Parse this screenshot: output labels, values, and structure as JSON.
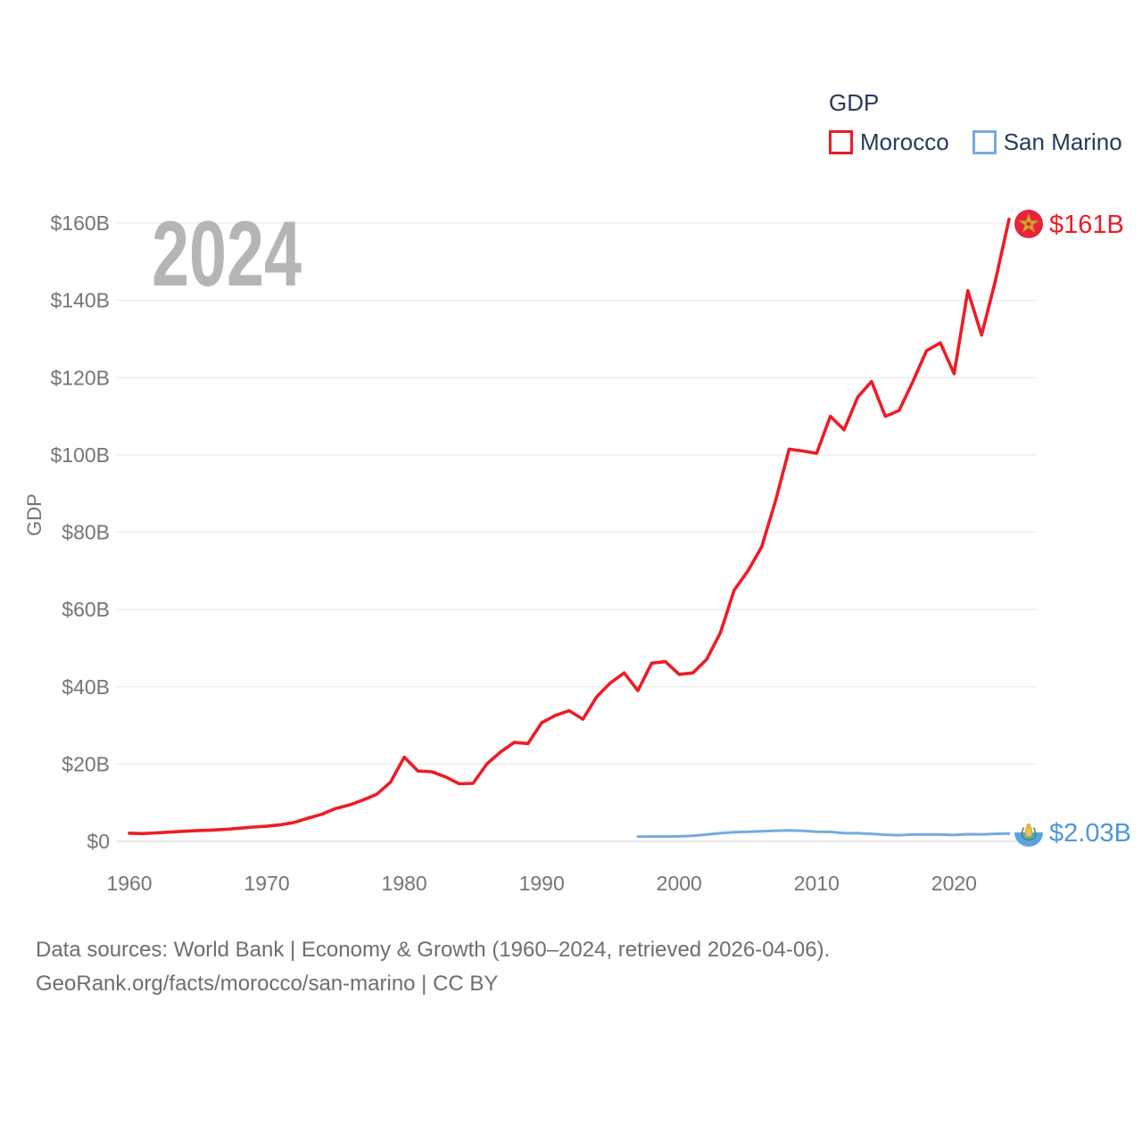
{
  "watermark": "2024",
  "legend": {
    "title": "GDP",
    "items": [
      {
        "label": "Morocco",
        "color": "#ee1c25"
      },
      {
        "label": "San Marino",
        "color": "#74abdf"
      }
    ]
  },
  "y_axis": {
    "title": "GDP",
    "ticks": [
      {
        "label": "$160B",
        "value": 160
      },
      {
        "label": "$140B",
        "value": 140
      },
      {
        "label": "$120B",
        "value": 120
      },
      {
        "label": "$100B",
        "value": 100
      },
      {
        "label": "$80B",
        "value": 80
      },
      {
        "label": "$60B",
        "value": 60
      },
      {
        "label": "$40B",
        "value": 40
      },
      {
        "label": "$20B",
        "value": 20
      },
      {
        "label": "$0",
        "value": 0
      }
    ]
  },
  "x_axis": {
    "ticks": [
      {
        "label": "1960",
        "value": 1960
      },
      {
        "label": "1970",
        "value": 1970
      },
      {
        "label": "1980",
        "value": 1980
      },
      {
        "label": "1990",
        "value": 1990
      },
      {
        "label": "2000",
        "value": 2000
      },
      {
        "label": "2010",
        "value": 2010
      },
      {
        "label": "2020",
        "value": 2020
      }
    ]
  },
  "end_labels": {
    "morocco": {
      "value": "$161B",
      "color": "#ee1c25",
      "flag": "morocco-flag-icon"
    },
    "san_marino": {
      "value": "$2.03B",
      "color": "#4f96d9",
      "flag": "san-marino-flag-icon"
    }
  },
  "footer": {
    "line1": "Data sources: World Bank | Economy & Growth (1960–2024, retrieved 2026-04-06).",
    "line2": "GeoRank.org/facts/morocco/san-marino | CC BY"
  },
  "chart_data": {
    "type": "line",
    "title": "GDP",
    "xlabel": "",
    "ylabel": "GDP",
    "unit": "billions of current US$",
    "x_range": [
      1960,
      2024
    ],
    "ylim": [
      0,
      160
    ],
    "grid": "horizontal",
    "legend_position": "top-right",
    "series": [
      {
        "name": "Morocco",
        "color": "#ee1c25",
        "end_label": "$161B",
        "x": [
          1960,
          1961,
          1962,
          1963,
          1964,
          1965,
          1966,
          1967,
          1968,
          1969,
          1970,
          1971,
          1972,
          1973,
          1974,
          1975,
          1976,
          1977,
          1978,
          1979,
          1980,
          1981,
          1982,
          1983,
          1984,
          1985,
          1986,
          1987,
          1988,
          1989,
          1990,
          1991,
          1992,
          1993,
          1994,
          1995,
          1996,
          1997,
          1998,
          1999,
          2000,
          2001,
          2002,
          2003,
          2004,
          2005,
          2006,
          2007,
          2008,
          2009,
          2010,
          2011,
          2012,
          2013,
          2014,
          2015,
          2016,
          2017,
          2018,
          2019,
          2020,
          2021,
          2022,
          2023,
          2024
        ],
        "values": [
          2.1,
          2.0,
          2.2,
          2.4,
          2.6,
          2.8,
          2.9,
          3.1,
          3.4,
          3.7,
          3.9,
          4.3,
          4.9,
          6.0,
          7.0,
          8.5,
          9.4,
          10.7,
          12.2,
          15.3,
          21.8,
          18.2,
          18.0,
          16.7,
          14.9,
          15.0,
          20.0,
          23.1,
          25.6,
          25.3,
          30.7,
          32.6,
          33.8,
          31.6,
          37.4,
          41.0,
          43.6,
          39.0,
          46.1,
          46.5,
          43.2,
          43.6,
          47.1,
          54.0,
          65.0,
          70.0,
          76.2,
          88.0,
          101.5,
          101.0,
          100.4,
          110.0,
          106.5,
          115.0,
          119.0,
          110.0,
          111.5,
          119.0,
          127.0,
          129.0,
          121.0,
          142.5,
          131.0,
          145.0,
          161.0
        ]
      },
      {
        "name": "San Marino",
        "color": "#74abdf",
        "end_label": "$2.03B",
        "x": [
          1997,
          1998,
          1999,
          2000,
          2001,
          2002,
          2003,
          2004,
          2005,
          2006,
          2007,
          2008,
          2009,
          2010,
          2011,
          2012,
          2013,
          2014,
          2015,
          2016,
          2017,
          2018,
          2019,
          2020,
          2021,
          2022,
          2023,
          2024
        ],
        "values": [
          1.2,
          1.25,
          1.25,
          1.3,
          1.45,
          1.75,
          2.1,
          2.35,
          2.5,
          2.6,
          2.75,
          2.85,
          2.7,
          2.5,
          2.45,
          2.1,
          2.1,
          1.95,
          1.7,
          1.6,
          1.75,
          1.8,
          1.75,
          1.65,
          1.85,
          1.8,
          1.95,
          2.03
        ]
      }
    ]
  }
}
